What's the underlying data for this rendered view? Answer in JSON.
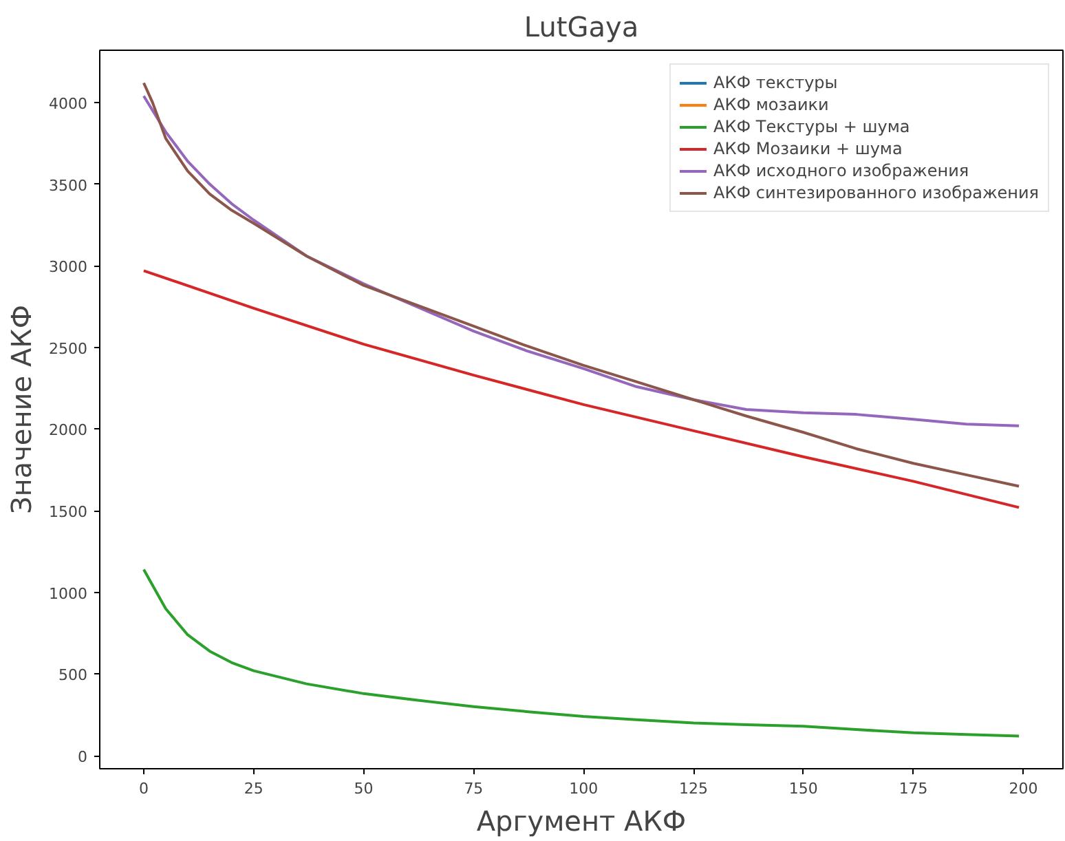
{
  "chart_data": {
    "type": "line",
    "title": "LutGaya",
    "xlabel": "Аргумент АКФ",
    "ylabel": "Значение АКФ",
    "xlim": [
      -10,
      209
    ],
    "ylim": [
      -80,
      4320
    ],
    "xticks": [
      0,
      25,
      50,
      75,
      100,
      125,
      150,
      175,
      200
    ],
    "yticks": [
      0,
      500,
      1000,
      1500,
      2000,
      2500,
      3000,
      3500,
      4000
    ],
    "grid": false,
    "legend": "top right",
    "series": [
      {
        "name": "АКФ текстуры",
        "color": "#1f77b4",
        "values": [
          null,
          null
        ]
      },
      {
        "name": "АКФ мозаики",
        "color": "#ff7f0e",
        "values": [
          null,
          null
        ]
      },
      {
        "name": "АКФ Текстуры + шума",
        "color": "#2ca02c",
        "x": [
          0,
          5,
          10,
          15,
          20,
          25,
          37,
          50,
          62,
          75,
          87,
          100,
          112,
          125,
          137,
          150,
          162,
          175,
          187,
          199
        ],
        "values": [
          1140,
          900,
          740,
          640,
          570,
          520,
          440,
          380,
          340,
          300,
          270,
          240,
          220,
          200,
          190,
          180,
          160,
          140,
          130,
          120
        ]
      },
      {
        "name": "АКФ Мозаики + шума",
        "color": "#d62728",
        "x": [
          0,
          25,
          50,
          75,
          100,
          125,
          150,
          175,
          199
        ],
        "values": [
          2970,
          2740,
          2520,
          2330,
          2150,
          1990,
          1830,
          1680,
          1520
        ]
      },
      {
        "name": "АКФ исходного изображения",
        "color": "#9467bd",
        "x": [
          0,
          5,
          10,
          15,
          20,
          25,
          37,
          50,
          62,
          75,
          87,
          100,
          112,
          125,
          137,
          150,
          162,
          175,
          187,
          199
        ],
        "values": [
          4040,
          3820,
          3640,
          3500,
          3380,
          3280,
          3060,
          2890,
          2750,
          2600,
          2480,
          2370,
          2260,
          2180,
          2120,
          2100,
          2090,
          2060,
          2030,
          2020
        ]
      },
      {
        "name": "АКФ синтезированного изображения",
        "color": "#8c564b",
        "x": [
          0,
          2,
          5,
          10,
          15,
          20,
          25,
          37,
          50,
          62,
          75,
          87,
          100,
          112,
          125,
          137,
          150,
          162,
          175,
          187,
          199
        ],
        "values": [
          4120,
          4000,
          3780,
          3580,
          3440,
          3340,
          3260,
          3060,
          2880,
          2760,
          2630,
          2510,
          2390,
          2290,
          2180,
          2080,
          1980,
          1880,
          1790,
          1720,
          1650
        ]
      }
    ]
  }
}
